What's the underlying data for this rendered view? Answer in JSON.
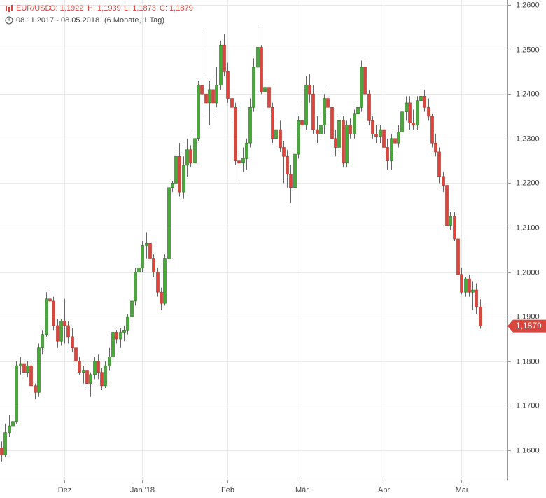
{
  "chart_data": {
    "type": "candlestick",
    "title": "EUR/USD",
    "quote_labels": [
      "O: 1,1922",
      "H: 1,1939",
      "L: 1,1873",
      "C: 1,1879"
    ],
    "subtitle": "08.11.2017 - 08.05.2018",
    "period": "(6 Monate, 1 Tag)",
    "up_color": "#4aa83a",
    "down_color": "#d9463e",
    "grid": true,
    "ylim": [
      1.1534,
      1.2611
    ],
    "yticks": [
      {
        "value": 1.16,
        "label": "1,1600"
      },
      {
        "value": 1.17,
        "label": "1,1700"
      },
      {
        "value": 1.18,
        "label": "1,1800"
      },
      {
        "value": 1.19,
        "label": "1,1900"
      },
      {
        "value": 1.2,
        "label": "1,2000"
      },
      {
        "value": 1.21,
        "label": "1,2100"
      },
      {
        "value": 1.22,
        "label": "1,2200"
      },
      {
        "value": 1.23,
        "label": "1,2300"
      },
      {
        "value": 1.24,
        "label": "1,2400"
      },
      {
        "value": 1.25,
        "label": "1,2500"
      },
      {
        "value": 1.26,
        "label": "1,2600"
      }
    ],
    "last_price": {
      "value": 1.1879,
      "label": "1,1879"
    },
    "categories": [
      null,
      null,
      null,
      null,
      null,
      null,
      null,
      null,
      null,
      null,
      null,
      null,
      null,
      null,
      null,
      null,
      null,
      "Dez",
      null,
      null,
      null,
      null,
      null,
      null,
      null,
      null,
      null,
      null,
      null,
      null,
      null,
      null,
      null,
      null,
      null,
      null,
      null,
      null,
      "Jan '18",
      null,
      null,
      null,
      null,
      null,
      null,
      null,
      null,
      null,
      null,
      null,
      null,
      null,
      null,
      null,
      null,
      null,
      null,
      null,
      null,
      null,
      null,
      "Feb",
      null,
      null,
      null,
      null,
      null,
      null,
      null,
      null,
      null,
      null,
      null,
      null,
      null,
      null,
      null,
      null,
      null,
      null,
      null,
      "Mär",
      null,
      null,
      null,
      null,
      null,
      null,
      null,
      null,
      null,
      null,
      null,
      null,
      null,
      null,
      null,
      null,
      null,
      null,
      null,
      null,
      null,
      "Apr",
      null,
      null,
      null,
      null,
      null,
      null,
      null,
      null,
      null,
      null,
      null,
      null,
      null,
      null,
      null,
      null,
      null,
      null,
      null,
      null,
      "Mai",
      null,
      null,
      null,
      null,
      null
    ],
    "ohlc": [
      [
        1.1605,
        1.162,
        1.1575,
        1.159
      ],
      [
        1.159,
        1.166,
        1.1585,
        1.164
      ],
      [
        1.164,
        1.168,
        1.163,
        1.1655
      ],
      [
        1.1655,
        1.1675,
        1.164,
        1.1665
      ],
      [
        1.1665,
        1.18,
        1.166,
        1.179
      ],
      [
        1.179,
        1.181,
        1.177,
        1.1795
      ],
      [
        1.1795,
        1.1805,
        1.176,
        1.1775
      ],
      [
        1.1775,
        1.18,
        1.1765,
        1.179
      ],
      [
        1.179,
        1.1795,
        1.173,
        1.1745
      ],
      [
        1.1745,
        1.175,
        1.1715,
        1.173
      ],
      [
        1.173,
        1.184,
        1.172,
        1.183
      ],
      [
        1.183,
        1.187,
        1.1815,
        1.186
      ],
      [
        1.186,
        1.1955,
        1.1855,
        1.194
      ],
      [
        1.194,
        1.196,
        1.192,
        1.1935
      ],
      [
        1.1935,
        1.1945,
        1.187,
        1.188
      ],
      [
        1.188,
        1.1895,
        1.183,
        1.1845
      ],
      [
        1.1845,
        1.1895,
        1.1835,
        1.189
      ],
      [
        1.189,
        1.194,
        1.184,
        1.188
      ],
      [
        1.188,
        1.189,
        1.184,
        1.1855
      ],
      [
        1.1855,
        1.1875,
        1.182,
        1.183
      ],
      [
        1.183,
        1.1845,
        1.179,
        1.18
      ],
      [
        1.18,
        1.181,
        1.177,
        1.1775
      ],
      [
        1.1775,
        1.179,
        1.175,
        1.178
      ],
      [
        1.178,
        1.179,
        1.174,
        1.175
      ],
      [
        1.175,
        1.1775,
        1.172,
        1.177
      ],
      [
        1.177,
        1.181,
        1.176,
        1.18
      ],
      [
        1.18,
        1.1815,
        1.176,
        1.1775
      ],
      [
        1.1775,
        1.1785,
        1.1735,
        1.1745
      ],
      [
        1.1745,
        1.18,
        1.174,
        1.179
      ],
      [
        1.179,
        1.183,
        1.178,
        1.181
      ],
      [
        1.181,
        1.1875,
        1.18,
        1.1865
      ],
      [
        1.1865,
        1.187,
        1.184,
        1.185
      ],
      [
        1.185,
        1.1875,
        1.183,
        1.1865
      ],
      [
        1.1865,
        1.188,
        1.1845,
        1.187
      ],
      [
        1.187,
        1.1905,
        1.186,
        1.19
      ],
      [
        1.19,
        1.194,
        1.189,
        1.1935
      ],
      [
        1.1935,
        1.201,
        1.1925,
        1.2
      ],
      [
        1.2,
        1.2015,
        1.1985,
        1.201
      ],
      [
        1.201,
        1.207,
        1.2,
        1.206
      ],
      [
        1.206,
        1.209,
        1.203,
        1.2065
      ],
      [
        1.2065,
        1.2085,
        1.202,
        1.203
      ],
      [
        1.203,
        1.204,
        1.199,
        1.2
      ],
      [
        1.2,
        1.201,
        1.1945,
        1.1955
      ],
      [
        1.1955,
        1.1965,
        1.1915,
        1.193
      ],
      [
        1.193,
        1.204,
        1.1925,
        1.203
      ],
      [
        1.203,
        1.22,
        1.202,
        1.219
      ],
      [
        1.219,
        1.2205,
        1.218,
        1.22
      ],
      [
        1.22,
        1.228,
        1.2195,
        1.226
      ],
      [
        1.226,
        1.229,
        1.217,
        1.218
      ],
      [
        1.218,
        1.226,
        1.2165,
        1.224
      ],
      [
        1.224,
        1.23,
        1.2215,
        1.2275
      ],
      [
        1.2275,
        1.2285,
        1.2235,
        1.2245
      ],
      [
        1.2245,
        1.231,
        1.224,
        1.23
      ],
      [
        1.23,
        1.243,
        1.2295,
        1.242
      ],
      [
        1.242,
        1.254,
        1.2385,
        1.24
      ],
      [
        1.24,
        1.244,
        1.235,
        1.238
      ],
      [
        1.238,
        1.243,
        1.233,
        1.241
      ],
      [
        1.241,
        1.244,
        1.235,
        1.238
      ],
      [
        1.238,
        1.246,
        1.237,
        1.242
      ],
      [
        1.242,
        1.252,
        1.241,
        1.251
      ],
      [
        1.251,
        1.2535,
        1.244,
        1.245
      ],
      [
        1.245,
        1.247,
        1.238,
        1.239
      ],
      [
        1.239,
        1.241,
        1.234,
        1.237
      ],
      [
        1.237,
        1.238,
        1.224,
        1.225
      ],
      [
        1.225,
        1.227,
        1.2205,
        1.2245
      ],
      [
        1.2245,
        1.228,
        1.2225,
        1.2255
      ],
      [
        1.2255,
        1.23,
        1.223,
        1.229
      ],
      [
        1.229,
        1.239,
        1.228,
        1.237
      ],
      [
        1.237,
        1.248,
        1.236,
        1.246
      ],
      [
        1.246,
        1.2555,
        1.245,
        1.2505
      ],
      [
        1.2505,
        1.251,
        1.24,
        1.2405
      ],
      [
        1.2405,
        1.243,
        1.238,
        1.2415
      ],
      [
        1.2415,
        1.242,
        1.235,
        1.237
      ],
      [
        1.237,
        1.238,
        1.229,
        1.23
      ],
      [
        1.23,
        1.234,
        1.228,
        1.232
      ],
      [
        1.232,
        1.234,
        1.227,
        1.228
      ],
      [
        1.228,
        1.2295,
        1.22,
        1.226
      ],
      [
        1.226,
        1.2275,
        1.219,
        1.222
      ],
      [
        1.222,
        1.224,
        1.2155,
        1.219
      ],
      [
        1.219,
        1.228,
        1.2185,
        1.2265
      ],
      [
        1.2265,
        1.235,
        1.2255,
        1.234
      ],
      [
        1.234,
        1.238,
        1.23,
        1.233
      ],
      [
        1.233,
        1.244,
        1.232,
        1.242
      ],
      [
        1.242,
        1.2445,
        1.238,
        1.24
      ],
      [
        1.24,
        1.242,
        1.231,
        1.232
      ],
      [
        1.232,
        1.235,
        1.229,
        1.231
      ],
      [
        1.231,
        1.235,
        1.23,
        1.233
      ],
      [
        1.233,
        1.24,
        1.231,
        1.239
      ],
      [
        1.239,
        1.242,
        1.235,
        1.237
      ],
      [
        1.237,
        1.238,
        1.229,
        1.23
      ],
      [
        1.23,
        1.232,
        1.226,
        1.228
      ],
      [
        1.228,
        1.235,
        1.227,
        1.234
      ],
      [
        1.234,
        1.235,
        1.2235,
        1.2245
      ],
      [
        1.2245,
        1.234,
        1.2235,
        1.233
      ],
      [
        1.233,
        1.2345,
        1.23,
        1.231
      ],
      [
        1.231,
        1.2365,
        1.23,
        1.2355
      ],
      [
        1.2355,
        1.238,
        1.233,
        1.237
      ],
      [
        1.237,
        1.2475,
        1.236,
        1.246
      ],
      [
        1.246,
        1.2475,
        1.239,
        1.24
      ],
      [
        1.24,
        1.241,
        1.233,
        1.234
      ],
      [
        1.234,
        1.235,
        1.23,
        1.231
      ],
      [
        1.231,
        1.233,
        1.229,
        1.2305
      ],
      [
        1.2305,
        1.233,
        1.229,
        1.232
      ],
      [
        1.232,
        1.233,
        1.227,
        1.228
      ],
      [
        1.228,
        1.23,
        1.223,
        1.225
      ],
      [
        1.225,
        1.231,
        1.223,
        1.23
      ],
      [
        1.23,
        1.231,
        1.227,
        1.229
      ],
      [
        1.229,
        1.233,
        1.228,
        1.2315
      ],
      [
        1.2315,
        1.237,
        1.2305,
        1.236
      ],
      [
        1.236,
        1.2395,
        1.234,
        1.238
      ],
      [
        1.238,
        1.2395,
        1.232,
        1.2335
      ],
      [
        1.2335,
        1.2365,
        1.232,
        1.233
      ],
      [
        1.233,
        1.2395,
        1.232,
        1.2385
      ],
      [
        1.2385,
        1.2415,
        1.237,
        1.2395
      ],
      [
        1.2395,
        1.241,
        1.236,
        1.237
      ],
      [
        1.237,
        1.239,
        1.234,
        1.235
      ],
      [
        1.235,
        1.2355,
        1.228,
        1.229
      ],
      [
        1.229,
        1.231,
        1.226,
        1.227
      ],
      [
        1.227,
        1.228,
        1.22,
        1.2215
      ],
      [
        1.2215,
        1.2225,
        1.218,
        1.2195
      ],
      [
        1.2195,
        1.22,
        1.2095,
        1.2105
      ],
      [
        1.2105,
        1.2135,
        1.2095,
        1.2125
      ],
      [
        1.2125,
        1.2135,
        1.207,
        1.2075
      ],
      [
        1.2075,
        1.2085,
        1.1985,
        1.1995
      ],
      [
        1.1995,
        1.201,
        1.195,
        1.1955
      ],
      [
        1.1955,
        1.199,
        1.1945,
        1.1985
      ],
      [
        1.1985,
        1.1995,
        1.1945,
        1.1955
      ],
      [
        1.1955,
        1.198,
        1.1915,
        1.196
      ],
      [
        1.196,
        1.1975,
        1.1905,
        1.1922
      ],
      [
        1.1922,
        1.1939,
        1.1873,
        1.1879
      ]
    ]
  }
}
